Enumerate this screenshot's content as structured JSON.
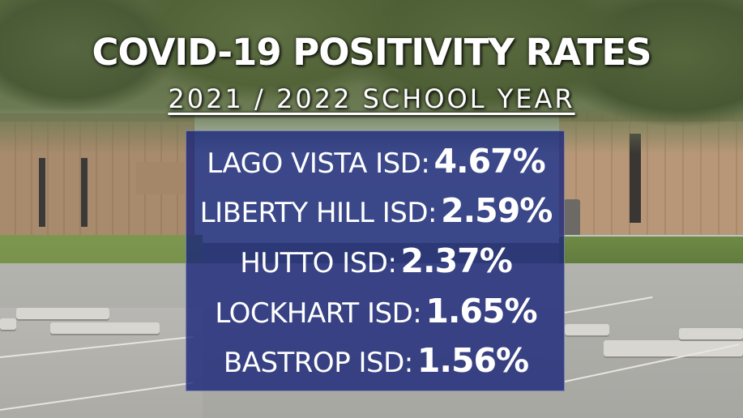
{
  "title": "COVID-19 POSITIVITY RATES",
  "subtitle": "2021 / 2022 SCHOOL YEAR",
  "districts": [
    {
      "name": "LAGO VISTA ISD:",
      "rate": "4.67%"
    },
    {
      "name": "LIBERTY HILL ISD:",
      "rate": "2.59%"
    },
    {
      "name": "HUTTO ISD:",
      "rate": "2.37%"
    },
    {
      "name": "LOCKHART ISD:",
      "rate": "1.65%"
    },
    {
      "name": "BASTROP ISD:",
      "rate": "1.56%"
    }
  ],
  "colors": {
    "panel": "#162278",
    "text": "#ffffff"
  }
}
